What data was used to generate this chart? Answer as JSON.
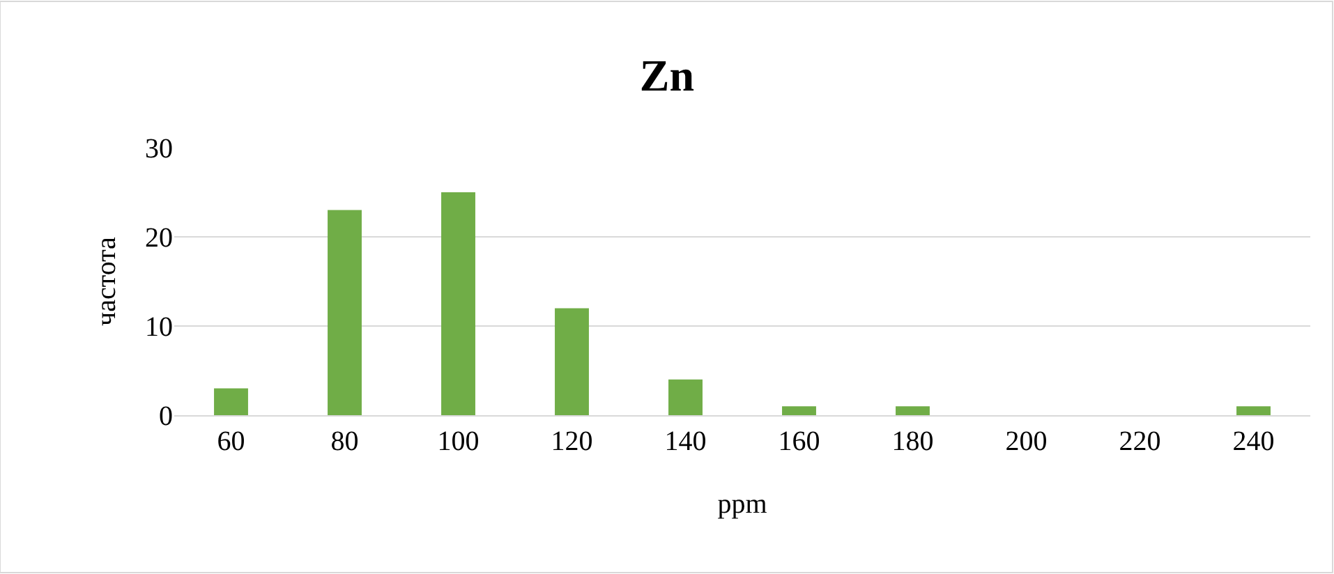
{
  "chart_data": {
    "type": "bar",
    "title": "Zn",
    "xlabel": "ppm",
    "ylabel": "частота",
    "categories": [
      "60",
      "80",
      "100",
      "120",
      "140",
      "160",
      "180",
      "200",
      "220",
      "240"
    ],
    "values": [
      3,
      23,
      25,
      12,
      4,
      1,
      1,
      0,
      0,
      1
    ],
    "color": "#70ad47",
    "ylim": [
      0,
      30
    ],
    "yticks": [
      0,
      10,
      20,
      30
    ],
    "grid": "y"
  }
}
